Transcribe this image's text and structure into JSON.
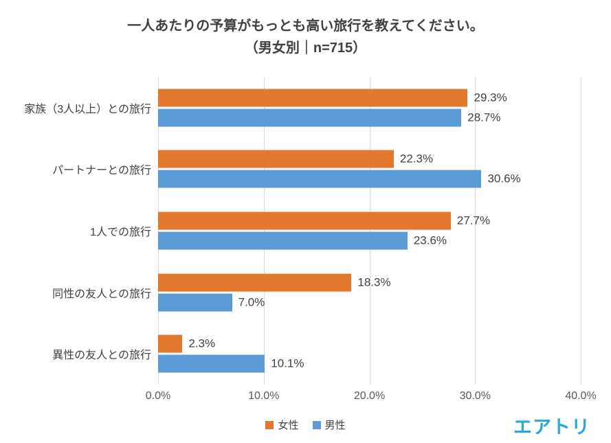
{
  "title": {
    "line1": "一人あたりの予算がもっとも高い旅行を教えてください。",
    "line2": "（男女別｜n=715）"
  },
  "chart_data": {
    "type": "bar",
    "orientation": "horizontal",
    "categories": [
      "家族（3人以上）との旅行",
      "パートナーとの旅行",
      "1人での旅行",
      "同性の友人との旅行",
      "異性の友人との旅行"
    ],
    "series": [
      {
        "key": "female",
        "name": "女性",
        "color": "#e2772e",
        "values": [
          29.3,
          22.3,
          27.7,
          18.3,
          2.3
        ]
      },
      {
        "key": "male",
        "name": "男性",
        "color": "#5b9bd5",
        "values": [
          28.7,
          30.6,
          23.6,
          7.0,
          10.1
        ]
      }
    ],
    "xlim": [
      0,
      40
    ],
    "xticks": [
      "0.0%",
      "10.0%",
      "20.0%",
      "30.0%",
      "40.0%"
    ],
    "value_suffix": "%",
    "grid": true,
    "legend_position": "bottom"
  },
  "logo": {
    "text": "エアトリ",
    "color": "#2ba7df"
  }
}
